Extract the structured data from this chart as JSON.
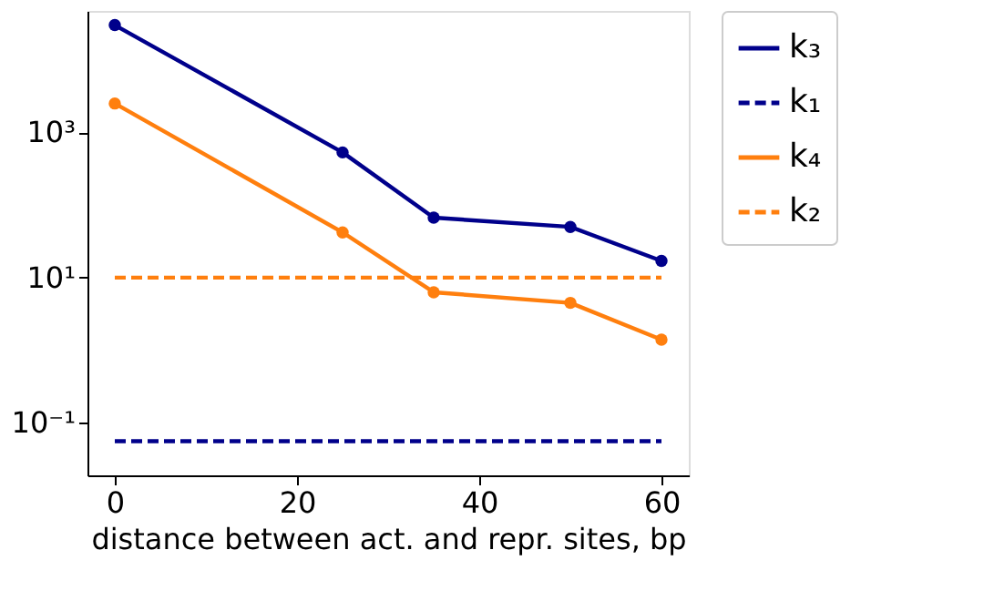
{
  "chart_data": {
    "type": "line",
    "xlabel": "distance between act. and repr. sites, bp",
    "log": "y",
    "grid": false,
    "legend": "top right",
    "xlim": [
      -3,
      63
    ],
    "xticks": [
      0,
      20,
      40,
      60
    ],
    "ylim": [
      0.019,
      47000
    ],
    "yticks": [
      {
        "value": 0.1,
        "label": "10⁻¹"
      },
      {
        "value": 10,
        "label": "10¹"
      },
      {
        "value": 1000,
        "label": "10³"
      }
    ],
    "series": [
      {
        "name": "k₃",
        "color": "#00008b",
        "x": [
          0,
          25,
          35,
          50,
          60
        ],
        "values": [
          30000,
          530,
          67,
          50,
          17
        ],
        "marker": "circle",
        "line_style": "solid"
      },
      {
        "name": "k₁",
        "color": "#00008b",
        "x": [
          0,
          60
        ],
        "values": [
          0.056,
          0.056
        ],
        "marker": "none",
        "line_style": "dashed"
      },
      {
        "name": "k₄",
        "color": "#ff7f0e",
        "x": [
          0,
          25,
          35,
          50,
          60
        ],
        "values": [
          2500,
          42,
          6.3,
          4.5,
          1.4
        ],
        "marker": "circle",
        "line_style": "solid"
      },
      {
        "name": "k₂",
        "color": "#ff7f0e",
        "x": [
          0,
          60
        ],
        "values": [
          10,
          10
        ],
        "marker": "none",
        "line_style": "dashed"
      }
    ]
  }
}
